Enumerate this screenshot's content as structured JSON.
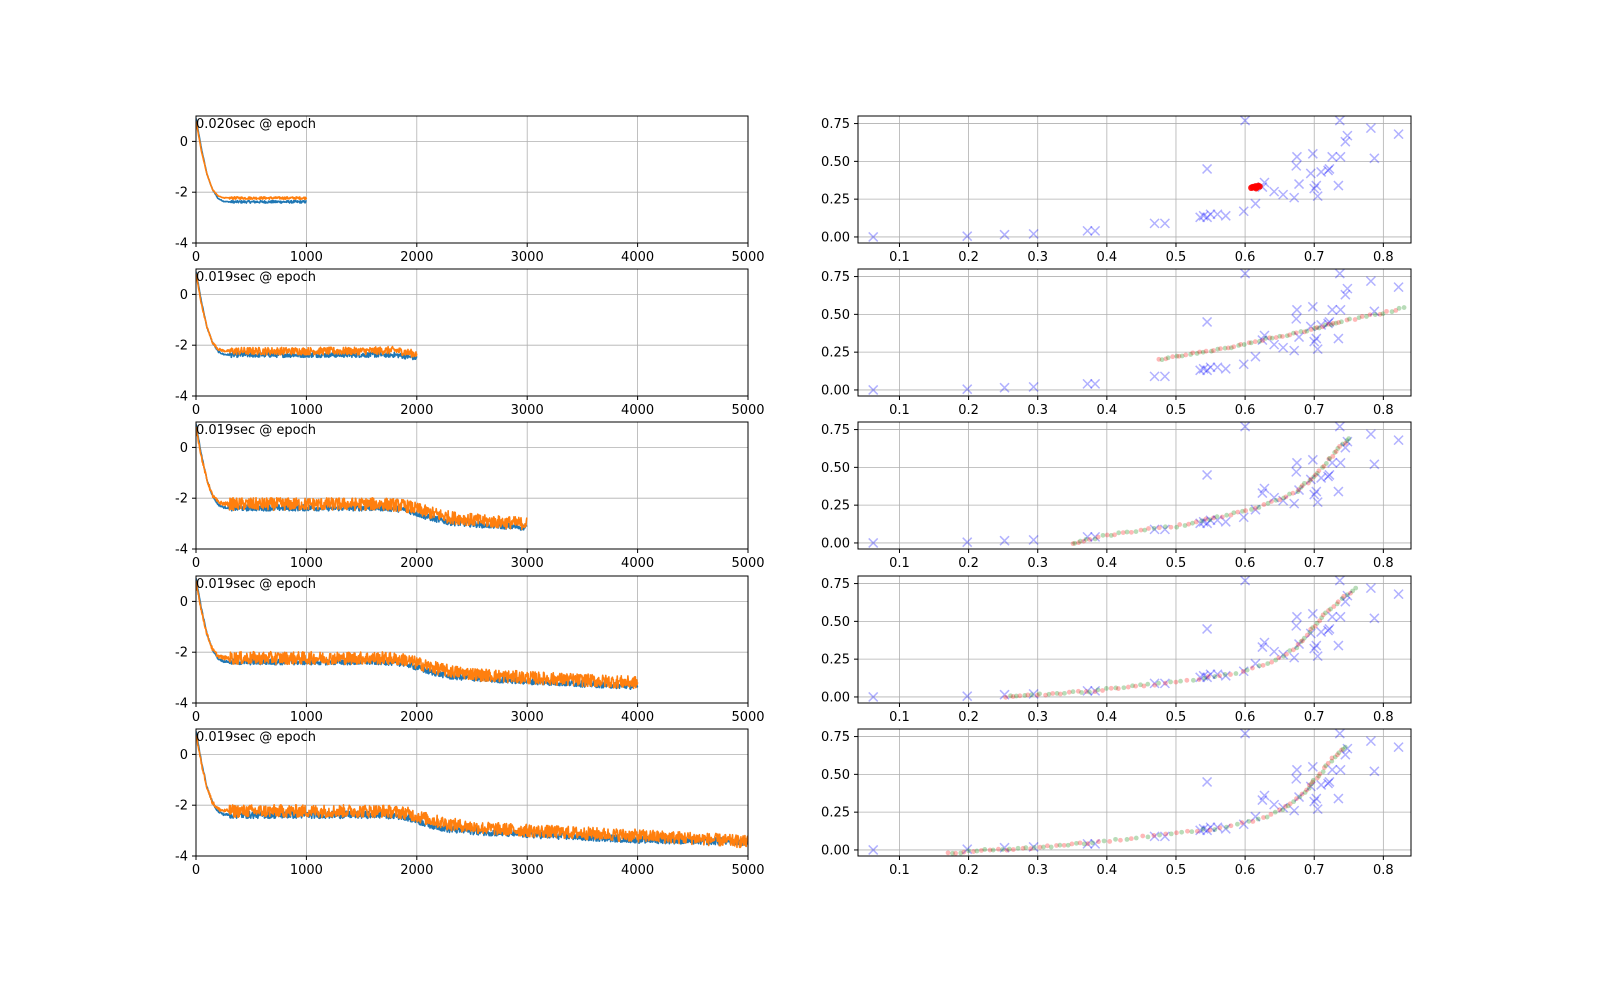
{
  "chart_data": {
    "loss_panels": [
      {
        "type": "line",
        "annotation": "0.020sec @ epoch",
        "xlim": [
          0,
          5000
        ],
        "ylim": [
          -4,
          1
        ],
        "xticks": [
          0,
          1000,
          2000,
          3000,
          4000,
          5000
        ],
        "yticks": [
          -4,
          -2,
          0
        ],
        "grid": true,
        "series": [
          {
            "color": "#1f77b4",
            "x": [
              0,
              50,
              100,
              150,
              200,
              250,
              300,
              500,
              1000
            ],
            "y": [
              0.9,
              -0.3,
              -1.3,
              -1.9,
              -2.25,
              -2.36,
              -2.38,
              -2.38,
              -2.38
            ],
            "noise": 0.05
          },
          {
            "color": "#ff7f0e",
            "x": [
              0,
              50,
              100,
              150,
              200,
              250,
              300,
              500,
              1000
            ],
            "y": [
              0.8,
              -0.4,
              -1.3,
              -1.9,
              -2.15,
              -2.22,
              -2.23,
              -2.23,
              -2.23
            ],
            "noise": 0.05
          }
        ]
      },
      {
        "type": "line",
        "annotation": "0.019sec @ epoch",
        "xlim": [
          0,
          5000
        ],
        "ylim": [
          -4,
          1
        ],
        "xticks": [
          0,
          1000,
          2000,
          3000,
          4000,
          5000
        ],
        "yticks": [
          -4,
          -2,
          0
        ],
        "grid": true,
        "series": [
          {
            "color": "#1f77b4",
            "x": [
              0,
              50,
              100,
              150,
              200,
              250,
              300,
              1500,
              1800,
              2000
            ],
            "y": [
              0.9,
              -0.3,
              -1.3,
              -1.9,
              -2.25,
              -2.36,
              -2.38,
              -2.38,
              -2.38,
              -2.5
            ],
            "noise": 0.1
          },
          {
            "color": "#ff7f0e",
            "x": [
              0,
              50,
              100,
              150,
              200,
              250,
              300,
              1500,
              1800,
              2000
            ],
            "y": [
              0.8,
              -0.4,
              -1.3,
              -1.9,
              -2.15,
              -2.22,
              -2.23,
              -2.23,
              -2.2,
              -2.35
            ],
            "noise": 0.15
          }
        ]
      },
      {
        "type": "line",
        "annotation": "0.019sec @ epoch",
        "xlim": [
          0,
          5000
        ],
        "ylim": [
          -4,
          1
        ],
        "xticks": [
          0,
          1000,
          2000,
          3000,
          4000,
          5000
        ],
        "yticks": [
          -4,
          -2,
          0
        ],
        "grid": true,
        "series": [
          {
            "color": "#1f77b4",
            "x": [
              0,
              50,
              100,
              150,
              200,
              250,
              300,
              1700,
              1900,
              2100,
              2300,
              2600,
              3000
            ],
            "y": [
              0.9,
              -0.3,
              -1.3,
              -1.9,
              -2.25,
              -2.36,
              -2.38,
              -2.38,
              -2.45,
              -2.75,
              -2.95,
              -3.05,
              -3.15
            ],
            "noise": 0.12
          },
          {
            "color": "#ff7f0e",
            "x": [
              0,
              50,
              100,
              150,
              200,
              250,
              300,
              1700,
              1900,
              2100,
              2300,
              2600,
              3000
            ],
            "y": [
              0.8,
              -0.4,
              -1.3,
              -1.9,
              -2.15,
              -2.22,
              -2.23,
              -2.23,
              -2.3,
              -2.55,
              -2.75,
              -2.9,
              -3.0
            ],
            "noise": 0.25
          }
        ]
      },
      {
        "type": "line",
        "annotation": "0.019sec @ epoch",
        "xlim": [
          0,
          5000
        ],
        "ylim": [
          -4,
          1
        ],
        "xticks": [
          0,
          1000,
          2000,
          3000,
          4000,
          5000
        ],
        "yticks": [
          -4,
          -2,
          0
        ],
        "grid": true,
        "series": [
          {
            "color": "#1f77b4",
            "x": [
              0,
              50,
              100,
              150,
              200,
              250,
              300,
              1700,
              1900,
              2100,
              2300,
              2600,
              3000,
              3500,
              4000
            ],
            "y": [
              0.9,
              -0.3,
              -1.3,
              -1.9,
              -2.25,
              -2.36,
              -2.38,
              -2.38,
              -2.45,
              -2.75,
              -2.95,
              -3.05,
              -3.15,
              -3.25,
              -3.35
            ],
            "noise": 0.12
          },
          {
            "color": "#ff7f0e",
            "x": [
              0,
              50,
              100,
              150,
              200,
              250,
              300,
              1700,
              1900,
              2100,
              2300,
              2600,
              3000,
              3500,
              4000
            ],
            "y": [
              0.8,
              -0.4,
              -1.3,
              -1.9,
              -2.15,
              -2.22,
              -2.23,
              -2.23,
              -2.3,
              -2.55,
              -2.75,
              -2.9,
              -3.0,
              -3.1,
              -3.2
            ],
            "noise": 0.25
          }
        ]
      },
      {
        "type": "line",
        "annotation": "0.019sec @ epoch",
        "xlim": [
          0,
          5000
        ],
        "ylim": [
          -4,
          1
        ],
        "xticks": [
          0,
          1000,
          2000,
          3000,
          4000,
          5000
        ],
        "yticks": [
          -4,
          -2,
          0
        ],
        "grid": true,
        "series": [
          {
            "color": "#1f77b4",
            "x": [
              0,
              50,
              100,
              150,
              200,
              250,
              300,
              1700,
              1900,
              2100,
              2300,
              2600,
              3000,
              3500,
              4000,
              4500,
              5000
            ],
            "y": [
              0.9,
              -0.3,
              -1.3,
              -1.9,
              -2.25,
              -2.36,
              -2.38,
              -2.38,
              -2.45,
              -2.75,
              -2.95,
              -3.05,
              -3.15,
              -3.25,
              -3.35,
              -3.4,
              -3.45
            ],
            "noise": 0.14
          },
          {
            "color": "#ff7f0e",
            "x": [
              0,
              50,
              100,
              150,
              200,
              250,
              300,
              1700,
              1900,
              2100,
              2300,
              2600,
              3000,
              3500,
              4000,
              4500,
              5000
            ],
            "y": [
              0.8,
              -0.4,
              -1.3,
              -1.9,
              -2.15,
              -2.22,
              -2.23,
              -2.23,
              -2.3,
              -2.55,
              -2.75,
              -2.9,
              -3.0,
              -3.1,
              -3.2,
              -3.3,
              -3.45
            ],
            "noise": 0.25
          }
        ]
      }
    ],
    "scatter_panels": {
      "type": "scatter",
      "xlim": [
        0.04,
        0.84
      ],
      "ylim": [
        -0.04,
        0.8
      ],
      "xticks": [
        0.1,
        0.2,
        0.3,
        0.4,
        0.5,
        0.6,
        0.7,
        0.8
      ],
      "xtick_labels": [
        "0.1",
        "0.2",
        "0.3",
        "0.4",
        "0.5",
        "0.6",
        "0.7",
        "0.8"
      ],
      "yticks": [
        0.0,
        0.25,
        0.5,
        0.75
      ],
      "ytick_labels": [
        "0.00",
        "0.25",
        "0.50",
        "0.75"
      ],
      "grid": true,
      "target_marker": "x",
      "target_color": "#0000ff",
      "pred_colors": [
        "#ff0000",
        "#008000"
      ],
      "targets": [
        [
          0.062,
          0.0
        ],
        [
          0.198,
          0.005
        ],
        [
          0.252,
          0.015
        ],
        [
          0.294,
          0.02
        ],
        [
          0.372,
          0.04
        ],
        [
          0.383,
          0.04
        ],
        [
          0.469,
          0.09
        ],
        [
          0.484,
          0.09
        ],
        [
          0.535,
          0.13
        ],
        [
          0.54,
          0.14
        ],
        [
          0.545,
          0.13
        ],
        [
          0.55,
          0.15
        ],
        [
          0.56,
          0.15
        ],
        [
          0.572,
          0.14
        ],
        [
          0.545,
          0.45
        ],
        [
          0.598,
          0.17
        ],
        [
          0.6,
          0.77
        ],
        [
          0.615,
          0.22
        ],
        [
          0.625,
          0.33
        ],
        [
          0.628,
          0.36
        ],
        [
          0.642,
          0.3
        ],
        [
          0.655,
          0.28
        ],
        [
          0.671,
          0.26
        ],
        [
          0.674,
          0.47
        ],
        [
          0.675,
          0.53
        ],
        [
          0.678,
          0.35
        ],
        [
          0.695,
          0.42
        ],
        [
          0.698,
          0.55
        ],
        [
          0.7,
          0.32
        ],
        [
          0.703,
          0.34
        ],
        [
          0.705,
          0.27
        ],
        [
          0.71,
          0.43
        ],
        [
          0.72,
          0.44
        ],
        [
          0.722,
          0.45
        ],
        [
          0.735,
          0.34
        ],
        [
          0.726,
          0.53
        ],
        [
          0.738,
          0.53
        ],
        [
          0.737,
          0.77
        ],
        [
          0.745,
          0.63
        ],
        [
          0.748,
          0.67
        ],
        [
          0.782,
          0.72
        ],
        [
          0.787,
          0.52
        ],
        [
          0.822,
          0.68
        ]
      ],
      "predictions": [
        [
          [
            0.609,
            0.325
          ],
          [
            0.611,
            0.33
          ],
          [
            0.613,
            0.328
          ],
          [
            0.615,
            0.335
          ],
          [
            0.617,
            0.33
          ],
          [
            0.619,
            0.338
          ],
          [
            0.621,
            0.334
          ],
          [
            0.616,
            0.322
          ]
        ],
        [
          [
            0.475,
            0.2
          ],
          [
            0.5,
            0.22
          ],
          [
            0.525,
            0.24
          ],
          [
            0.55,
            0.26
          ],
          [
            0.575,
            0.28
          ],
          [
            0.6,
            0.305
          ],
          [
            0.625,
            0.33
          ],
          [
            0.65,
            0.355
          ],
          [
            0.675,
            0.38
          ],
          [
            0.7,
            0.405
          ],
          [
            0.72,
            0.43
          ],
          [
            0.74,
            0.455
          ],
          [
            0.77,
            0.48
          ],
          [
            0.8,
            0.51
          ],
          [
            0.83,
            0.545
          ]
        ],
        [
          [
            0.35,
            0.0
          ],
          [
            0.37,
            0.02
          ],
          [
            0.4,
            0.05
          ],
          [
            0.43,
            0.07
          ],
          [
            0.46,
            0.09
          ],
          [
            0.5,
            0.11
          ],
          [
            0.53,
            0.14
          ],
          [
            0.56,
            0.17
          ],
          [
            0.59,
            0.2
          ],
          [
            0.62,
            0.24
          ],
          [
            0.65,
            0.29
          ],
          [
            0.675,
            0.34
          ],
          [
            0.69,
            0.4
          ],
          [
            0.705,
            0.46
          ],
          [
            0.72,
            0.55
          ],
          [
            0.735,
            0.62
          ],
          [
            0.75,
            0.69
          ]
        ],
        [
          [
            0.255,
            0.0
          ],
          [
            0.28,
            0.01
          ],
          [
            0.31,
            0.015
          ],
          [
            0.34,
            0.025
          ],
          [
            0.37,
            0.035
          ],
          [
            0.4,
            0.05
          ],
          [
            0.43,
            0.065
          ],
          [
            0.46,
            0.08
          ],
          [
            0.5,
            0.1
          ],
          [
            0.54,
            0.125
          ],
          [
            0.58,
            0.15
          ],
          [
            0.62,
            0.2
          ],
          [
            0.65,
            0.26
          ],
          [
            0.675,
            0.33
          ],
          [
            0.69,
            0.41
          ],
          [
            0.705,
            0.49
          ],
          [
            0.72,
            0.57
          ],
          [
            0.74,
            0.65
          ],
          [
            0.76,
            0.72
          ]
        ],
        [
          [
            0.17,
            -0.02
          ],
          [
            0.2,
            -0.01
          ],
          [
            0.23,
            0.0
          ],
          [
            0.26,
            0.005
          ],
          [
            0.29,
            0.015
          ],
          [
            0.32,
            0.025
          ],
          [
            0.35,
            0.04
          ],
          [
            0.38,
            0.05
          ],
          [
            0.42,
            0.07
          ],
          [
            0.46,
            0.09
          ],
          [
            0.5,
            0.11
          ],
          [
            0.54,
            0.13
          ],
          [
            0.58,
            0.16
          ],
          [
            0.62,
            0.2
          ],
          [
            0.65,
            0.26
          ],
          [
            0.67,
            0.32
          ],
          [
            0.69,
            0.4
          ],
          [
            0.7,
            0.46
          ],
          [
            0.715,
            0.54
          ],
          [
            0.73,
            0.62
          ],
          [
            0.745,
            0.68
          ]
        ]
      ]
    }
  }
}
